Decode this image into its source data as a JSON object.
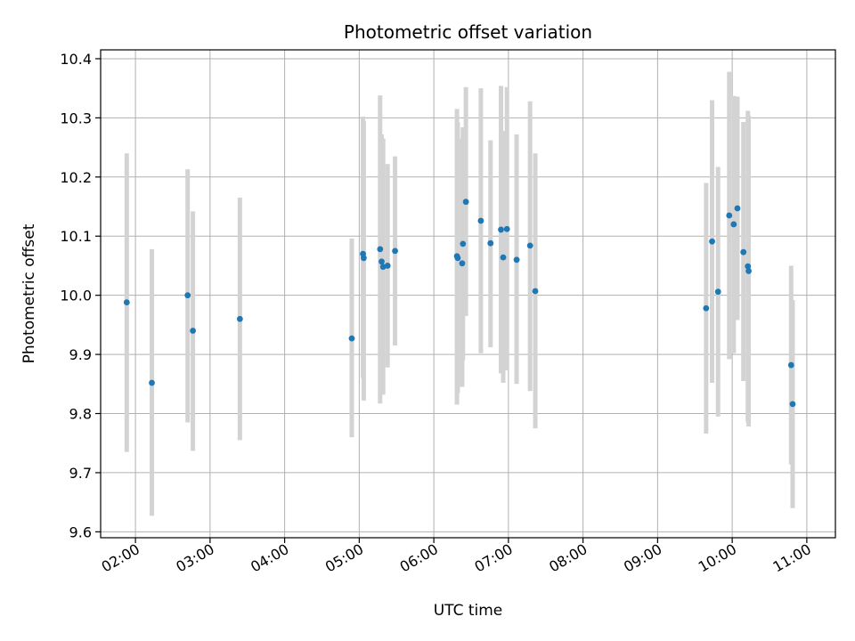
{
  "chart_data": {
    "type": "scatter",
    "title": "Photometric offset variation",
    "xlabel": "UTC time",
    "ylabel": "Photometric offset",
    "x_unit": "UTC time (hours)",
    "xlim": [
      1.5333,
      11.3833
    ],
    "ylim": [
      9.59,
      10.415
    ],
    "grid": true,
    "x_tick_labels": [
      "02:00",
      "03:00",
      "04:00",
      "05:00",
      "06:00",
      "07:00",
      "08:00",
      "09:00",
      "10:00",
      "11:00"
    ],
    "y_tick_labels": [
      "9.6",
      "9.7",
      "9.8",
      "9.9",
      "10.0",
      "10.1",
      "10.2",
      "10.3",
      "10.4"
    ],
    "colors": {
      "points": "#1f77b4",
      "errorbars": "#d3d3d3",
      "grid": "#b0b0b0"
    },
    "points": [
      {
        "x": 1.883,
        "y": 9.988,
        "low": 9.735,
        "high": 10.24
      },
      {
        "x": 2.22,
        "y": 9.852,
        "low": 9.627,
        "high": 10.078
      },
      {
        "x": 2.7,
        "y": 10.0,
        "low": 9.785,
        "high": 10.213
      },
      {
        "x": 2.77,
        "y": 9.94,
        "low": 9.737,
        "high": 10.142
      },
      {
        "x": 3.4,
        "y": 9.96,
        "low": 9.755,
        "high": 10.165
      },
      {
        "x": 4.9,
        "y": 9.927,
        "low": 9.76,
        "high": 10.096
      },
      {
        "x": 5.05,
        "y": 10.07,
        "low": 9.86,
        "high": 10.302
      },
      {
        "x": 5.06,
        "y": 10.063,
        "low": 9.822,
        "high": 10.295
      },
      {
        "x": 5.28,
        "y": 10.078,
        "low": 9.817,
        "high": 10.338
      },
      {
        "x": 5.3,
        "y": 10.057,
        "low": 9.845,
        "high": 10.272
      },
      {
        "x": 5.32,
        "y": 10.048,
        "low": 9.832,
        "high": 10.265
      },
      {
        "x": 5.38,
        "y": 10.05,
        "low": 9.878,
        "high": 10.222
      },
      {
        "x": 5.48,
        "y": 10.075,
        "low": 9.915,
        "high": 10.235
      },
      {
        "x": 6.31,
        "y": 10.066,
        "low": 9.815,
        "high": 10.315
      },
      {
        "x": 6.32,
        "y": 10.063,
        "low": 9.835,
        "high": 10.292
      },
      {
        "x": 6.38,
        "y": 10.054,
        "low": 9.845,
        "high": 10.265
      },
      {
        "x": 6.39,
        "y": 10.087,
        "low": 9.89,
        "high": 10.284
      },
      {
        "x": 6.43,
        "y": 10.158,
        "low": 9.965,
        "high": 10.352
      },
      {
        "x": 6.63,
        "y": 10.126,
        "low": 9.902,
        "high": 10.35
      },
      {
        "x": 6.76,
        "y": 10.088,
        "low": 9.912,
        "high": 10.262
      },
      {
        "x": 6.9,
        "y": 10.111,
        "low": 9.868,
        "high": 10.354
      },
      {
        "x": 6.93,
        "y": 10.064,
        "low": 9.852,
        "high": 10.278
      },
      {
        "x": 6.98,
        "y": 10.112,
        "low": 9.873,
        "high": 10.352
      },
      {
        "x": 7.11,
        "y": 10.06,
        "low": 9.85,
        "high": 10.272
      },
      {
        "x": 7.29,
        "y": 10.084,
        "low": 9.838,
        "high": 10.328
      },
      {
        "x": 7.36,
        "y": 10.007,
        "low": 9.775,
        "high": 10.24
      },
      {
        "x": 9.65,
        "y": 9.978,
        "low": 9.766,
        "high": 10.19
      },
      {
        "x": 9.73,
        "y": 10.091,
        "low": 9.852,
        "high": 10.33
      },
      {
        "x": 9.81,
        "y": 10.006,
        "low": 9.795,
        "high": 10.217
      },
      {
        "x": 9.96,
        "y": 10.135,
        "low": 9.892,
        "high": 10.378
      },
      {
        "x": 10.02,
        "y": 10.12,
        "low": 9.902,
        "high": 10.337
      },
      {
        "x": 10.07,
        "y": 10.147,
        "low": 9.958,
        "high": 10.336
      },
      {
        "x": 10.15,
        "y": 10.073,
        "low": 9.855,
        "high": 10.293
      },
      {
        "x": 10.21,
        "y": 10.049,
        "low": 9.785,
        "high": 10.312
      },
      {
        "x": 10.22,
        "y": 10.041,
        "low": 9.778,
        "high": 10.304
      },
      {
        "x": 10.79,
        "y": 9.882,
        "low": 9.714,
        "high": 10.05
      },
      {
        "x": 10.81,
        "y": 9.816,
        "low": 9.64,
        "high": 9.992
      }
    ]
  }
}
